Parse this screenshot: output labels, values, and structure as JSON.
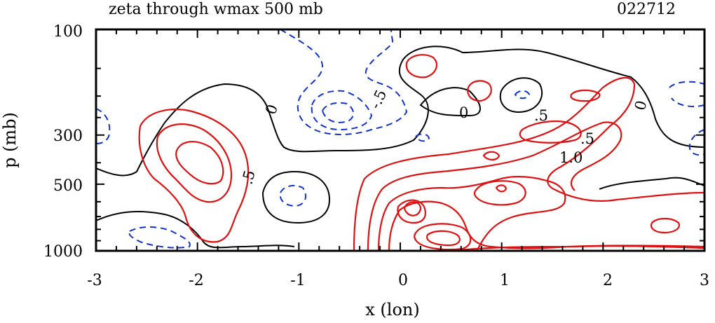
{
  "chart_data": {
    "type": "contour",
    "title": "zeta through wmax 500 mb",
    "date_label": "022712",
    "xlabel": "x (lon)",
    "ylabel": "p (mb)",
    "xlim": [
      -3,
      3
    ],
    "x_ticks": [
      "-3",
      "-2",
      "-1",
      "0",
      "1",
      "2",
      "3"
    ],
    "y_ticks": [
      "100",
      "300",
      "500",
      "1000"
    ],
    "y_scale": "log (pressure, inverted)",
    "series": [
      {
        "name": "positive contours",
        "color": "#dd1111",
        "style": "solid"
      },
      {
        "name": "zero contour",
        "color": "#000000",
        "style": "solid"
      },
      {
        "name": "negative contours",
        "color": "#1133cc",
        "style": "dashed"
      }
    ],
    "contour_labels": [
      "0",
      "0",
      "0",
      ".5",
      ".5",
      ".5",
      "1.0",
      "-.5"
    ]
  }
}
